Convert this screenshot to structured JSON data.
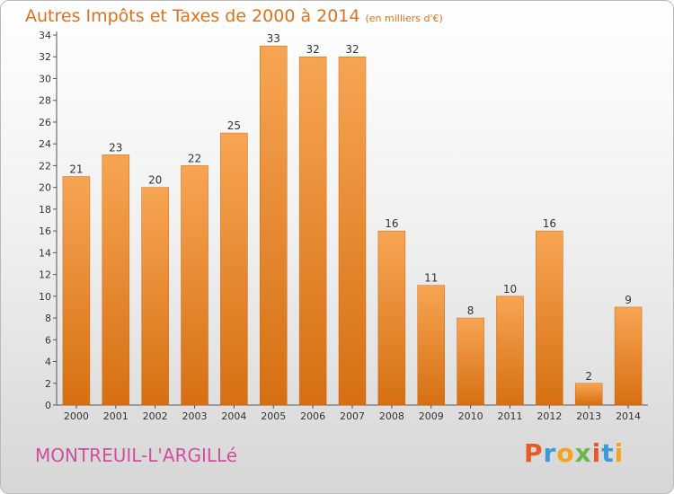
{
  "header": {
    "title": "Autres Impôts et Taxes de 2000 à 2014",
    "subtitle": "(en milliers d'€)"
  },
  "footer": {
    "commune": "MONTREUIL-L'ARGILLé",
    "logo_text": "Proxiti",
    "logo_colors": [
      "#e8592a",
      "#3d9ad7",
      "#f4a51d",
      "#6ab84a",
      "#e8592a",
      "#3d9ad7",
      "#f4a51d"
    ]
  },
  "colors": {
    "bar_top": "#f7a553",
    "bar_bottom": "#d66f12",
    "title": "#e0701a",
    "commune": "#d14fa0"
  },
  "chart_data": {
    "type": "bar",
    "categories": [
      "2000",
      "2001",
      "2002",
      "2003",
      "2004",
      "2005",
      "2006",
      "2007",
      "2008",
      "2009",
      "2010",
      "2011",
      "2012",
      "2013",
      "2014"
    ],
    "values": [
      21,
      23,
      20,
      22,
      25,
      33,
      32,
      32,
      16,
      11,
      8,
      10,
      16,
      2,
      9
    ],
    "title": "Autres Impôts et Taxes de 2000 à 2014",
    "subtitle": "(en milliers d'€)",
    "ylim": [
      0,
      34
    ],
    "yticks": [
      0,
      2,
      4,
      6,
      8,
      10,
      12,
      14,
      16,
      18,
      20,
      22,
      24,
      26,
      28,
      30,
      32,
      34
    ],
    "grid": false,
    "legend": "none"
  }
}
